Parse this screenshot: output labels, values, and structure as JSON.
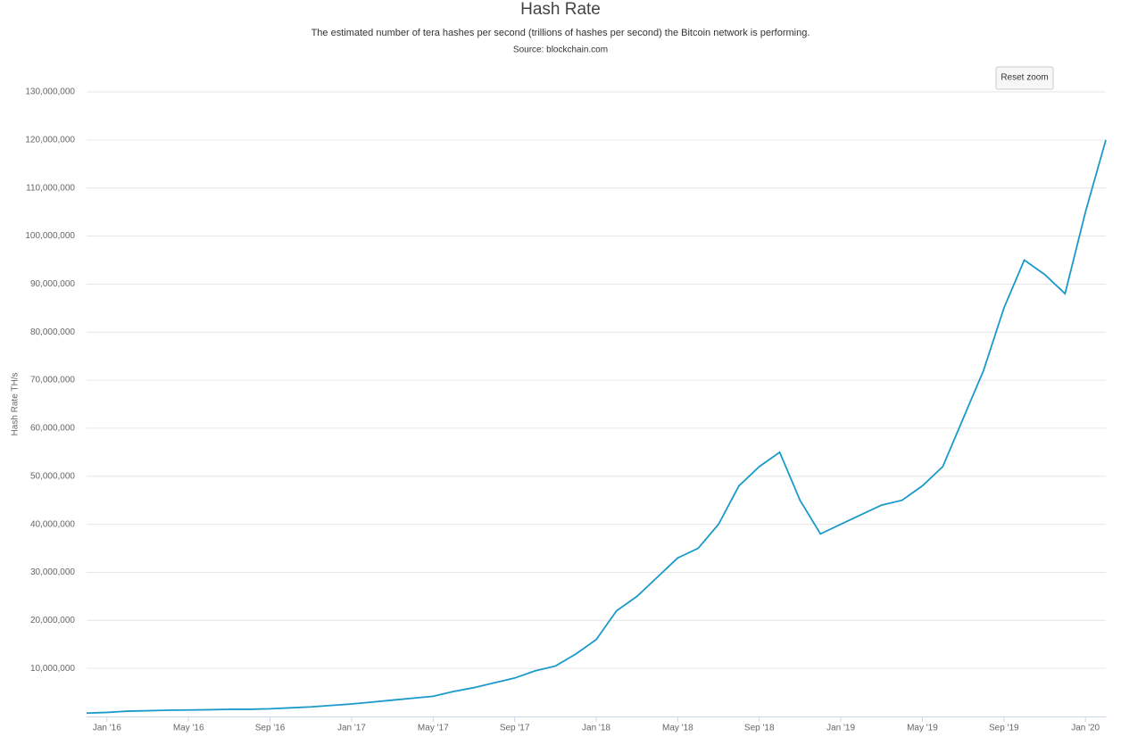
{
  "chart_data": {
    "type": "line",
    "title": "Hash Rate",
    "subtitle": "The estimated number of tera hashes per second (trillions of hashes per second) the Bitcoin network is performing.",
    "source": "Source: blockchain.com",
    "y_label": "Hash Rate TH/s",
    "button": "Reset zoom",
    "x": [
      "2015-12",
      "2016-01",
      "2016-02",
      "2016-03",
      "2016-04",
      "2016-05",
      "2016-06",
      "2016-07",
      "2016-08",
      "2016-09",
      "2016-10",
      "2016-11",
      "2016-12",
      "2017-01",
      "2017-02",
      "2017-03",
      "2017-04",
      "2017-05",
      "2017-06",
      "2017-07",
      "2017-08",
      "2017-09",
      "2017-10",
      "2017-11",
      "2017-12",
      "2018-01",
      "2018-02",
      "2018-03",
      "2018-04",
      "2018-05",
      "2018-06",
      "2018-07",
      "2018-08",
      "2018-09",
      "2018-10",
      "2018-11",
      "2018-12",
      "2019-01",
      "2019-02",
      "2019-03",
      "2019-04",
      "2019-05",
      "2019-06",
      "2019-07",
      "2019-08",
      "2019-09",
      "2019-10",
      "2019-11",
      "2019-12",
      "2020-01",
      "2020-02"
    ],
    "series": [
      {
        "name": "Hash Rate",
        "color": "#1a9ac9",
        "values": [
          700000,
          850000,
          1100000,
          1200000,
          1300000,
          1350000,
          1400000,
          1500000,
          1500000,
          1600000,
          1800000,
          2000000,
          2300000,
          2600000,
          3000000,
          3400000,
          3800000,
          4200000,
          5200000,
          6000000,
          7000000,
          8000000,
          9500000,
          10500000,
          13000000,
          16000000,
          22000000,
          25000000,
          29000000,
          33000000,
          35000000,
          40000000,
          48000000,
          52000000,
          55000000,
          45000000,
          38000000,
          40000000,
          42000000,
          44000000,
          45000000,
          48000000,
          52000000,
          62000000,
          72000000,
          85000000,
          95000000,
          92000000,
          88000000,
          105000000,
          120000000
        ]
      }
    ],
    "xlim": [
      "2015-12",
      "2020-02"
    ],
    "xticks": [
      {
        "value": "2016-01",
        "label": "Jan '16"
      },
      {
        "value": "2016-05",
        "label": "May '16"
      },
      {
        "value": "2016-09",
        "label": "Sep '16"
      },
      {
        "value": "2017-01",
        "label": "Jan '17"
      },
      {
        "value": "2017-05",
        "label": "May '17"
      },
      {
        "value": "2017-09",
        "label": "Sep '17"
      },
      {
        "value": "2018-01",
        "label": "Jan '18"
      },
      {
        "value": "2018-05",
        "label": "May '18"
      },
      {
        "value": "2018-09",
        "label": "Sep '18"
      },
      {
        "value": "2019-01",
        "label": "Jan '19"
      },
      {
        "value": "2019-05",
        "label": "May '19"
      },
      {
        "value": "2019-09",
        "label": "Sep '19"
      },
      {
        "value": "2020-01",
        "label": "Jan '20"
      }
    ],
    "ylim": [
      0,
      130000000
    ],
    "yticks": [
      {
        "value": 10000000,
        "label": "10,000,000"
      },
      {
        "value": 20000000,
        "label": "20,000,000"
      },
      {
        "value": 30000000,
        "label": "30,000,000"
      },
      {
        "value": 40000000,
        "label": "40,000,000"
      },
      {
        "value": 50000000,
        "label": "50,000,000"
      },
      {
        "value": 60000000,
        "label": "60,000,000"
      },
      {
        "value": 70000000,
        "label": "70,000,000"
      },
      {
        "value": 80000000,
        "label": "80,000,000"
      },
      {
        "value": 90000000,
        "label": "90,000,000"
      },
      {
        "value": 100000000,
        "label": "100,000,000"
      },
      {
        "value": 110000000,
        "label": "110,000,000"
      },
      {
        "value": 120000000,
        "label": "120,000,000"
      },
      {
        "value": 130000000,
        "label": "130,000,000"
      }
    ],
    "grid": true
  }
}
